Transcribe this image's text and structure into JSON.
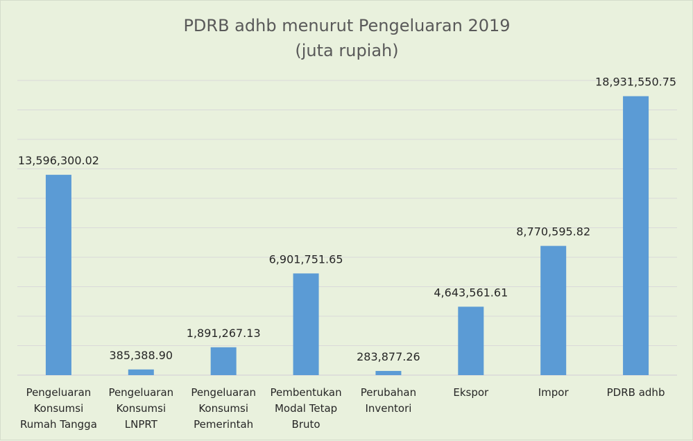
{
  "chart_data": {
    "type": "bar",
    "title": "PDRB adhb menurut Pengeluaran 2019",
    "subtitle": "(juta rupiah)",
    "categories": [
      [
        "Pengeluaran",
        "Konsumsi",
        "Rumah Tangga"
      ],
      [
        "Pengeluaran",
        "Konsumsi",
        "LNPRT"
      ],
      [
        "Pengeluaran",
        "Konsumsi",
        "Pemerintah"
      ],
      [
        "Pembentukan",
        "Modal Tetap",
        "Bruto"
      ],
      [
        "Perubahan",
        "Inventori"
      ],
      [
        "Ekspor"
      ],
      [
        "Impor"
      ],
      [
        "PDRB adhb"
      ]
    ],
    "values": [
      13596300.02,
      385388.9,
      1891267.13,
      6901751.65,
      283877.26,
      4643561.61,
      8770595.82,
      18931550.75
    ],
    "data_labels": [
      "13,596,300.02",
      "385,388.90",
      "1,891,267.13",
      "6,901,751.65",
      "283,877.26",
      "4,643,561.61",
      "8,770,595.82",
      "18,931,550.75"
    ],
    "ylim": [
      0,
      20000000
    ],
    "y_gridline_step": 2000000,
    "grid": true,
    "bar_color": "#5b9bd5",
    "background_color": "#e9f1dd",
    "gridline_color": "#d9d9d9"
  }
}
